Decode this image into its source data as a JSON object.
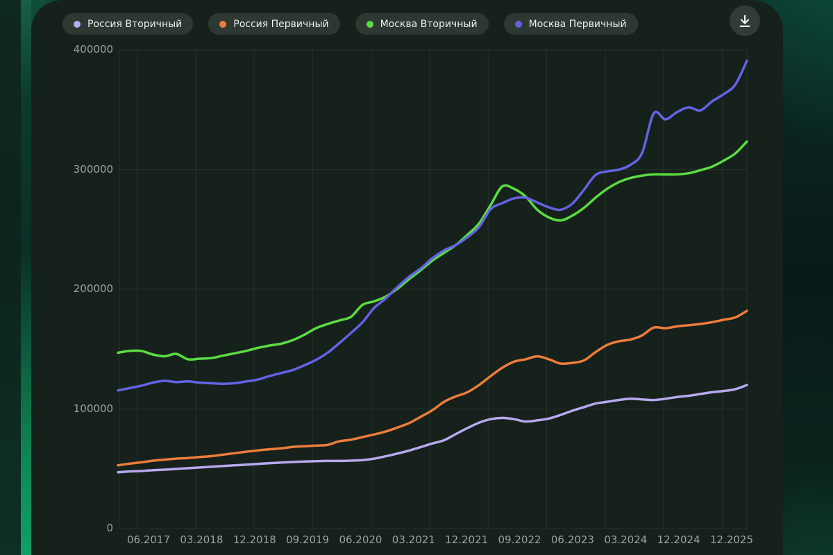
{
  "legend": {
    "items": [
      {
        "label": "Россия Вторичный",
        "color": "#b7a9ef"
      },
      {
        "label": "Россия Первичный",
        "color": "#ee7d3b"
      },
      {
        "label": "Москва Вторичный",
        "color": "#5bdc43"
      },
      {
        "label": "Москва Первичный",
        "color": "#6463e6"
      }
    ]
  },
  "toolbar": {
    "download_icon": "download-icon"
  },
  "chart_data": {
    "type": "line",
    "title": "",
    "xlabel": "",
    "ylabel": "",
    "legend_position": "top",
    "grid": true,
    "ylim": [
      0,
      400000
    ],
    "y_ticks": [
      0,
      100000,
      200000,
      300000,
      400000
    ],
    "x_tick_labels": [
      "06.2017",
      "03.2018",
      "12.2018",
      "09.2019",
      "06.2020",
      "03.2021",
      "12.2021",
      "09.2022",
      "06.2023",
      "03.2024",
      "12.2024",
      "12.2025"
    ],
    "x_range": "01.2017 - 12.2025",
    "series": [
      {
        "name": "Россия Вторичный",
        "color": "#b7a9ef",
        "values": [
          47100,
          47800,
          48200,
          48800,
          49300,
          49900,
          50500,
          51100,
          51700,
          52300,
          52900,
          53500,
          54100,
          54700,
          55200,
          55700,
          56100,
          56400,
          56600,
          56600,
          56800,
          57300,
          58500,
          60500,
          62800,
          65300,
          68200,
          71200,
          73900,
          79000,
          84000,
          88500,
          91500,
          92500,
          91500,
          89500,
          90500,
          92000,
          95000,
          98500,
          101500,
          104500,
          106000,
          107500,
          108500,
          108000,
          107500,
          108500,
          110000,
          111000,
          112500,
          114000,
          115000,
          116500,
          120000
        ]
      },
      {
        "name": "Россия Первичный",
        "color": "#ee7d3b",
        "values": [
          52900,
          54300,
          55400,
          56800,
          57700,
          58500,
          59000,
          59800,
          60600,
          61800,
          63000,
          64300,
          65400,
          66300,
          67100,
          68300,
          68800,
          69400,
          70000,
          73000,
          74300,
          76500,
          78700,
          81200,
          84500,
          88200,
          93500,
          99000,
          106000,
          110500,
          114000,
          120000,
          127500,
          134500,
          139500,
          141500,
          144000,
          141500,
          138000,
          138500,
          140500,
          147500,
          153500,
          156500,
          158000,
          161500,
          168000,
          167500,
          169000,
          170000,
          171000,
          172500,
          174500,
          176500,
          182000
        ]
      },
      {
        "name": "Москва Вторичный",
        "color": "#5bdc43",
        "values": [
          147000,
          148500,
          148500,
          145500,
          144000,
          146000,
          141500,
          142000,
          142500,
          144500,
          146500,
          148500,
          151000,
          153000,
          154500,
          157500,
          162000,
          167500,
          171000,
          174000,
          177000,
          187000,
          190000,
          194000,
          200500,
          208500,
          216000,
          224000,
          230500,
          237000,
          245500,
          255000,
          270500,
          286000,
          284000,
          277500,
          266500,
          260000,
          257500,
          261500,
          268000,
          276500,
          284000,
          289500,
          293000,
          295000,
          296000,
          296000,
          296000,
          297000,
          299500,
          302500,
          307500,
          313500,
          323500
        ]
      },
      {
        "name": "Москва Первичный",
        "color": "#6463e6",
        "values": [
          115500,
          117500,
          119500,
          122000,
          123500,
          122500,
          123000,
          122000,
          121500,
          121000,
          121500,
          123000,
          124500,
          127500,
          130000,
          132500,
          136500,
          141000,
          147000,
          155000,
          163500,
          172500,
          184500,
          192500,
          202000,
          210500,
          217500,
          226000,
          232500,
          237000,
          243500,
          252000,
          267000,
          272000,
          276000,
          276500,
          272500,
          268500,
          266500,
          271500,
          283000,
          295500,
          298500,
          300000,
          304000,
          314000,
          347000,
          342000,
          348000,
          352000,
          349500,
          357000,
          363000,
          371000,
          391000
        ]
      }
    ]
  }
}
